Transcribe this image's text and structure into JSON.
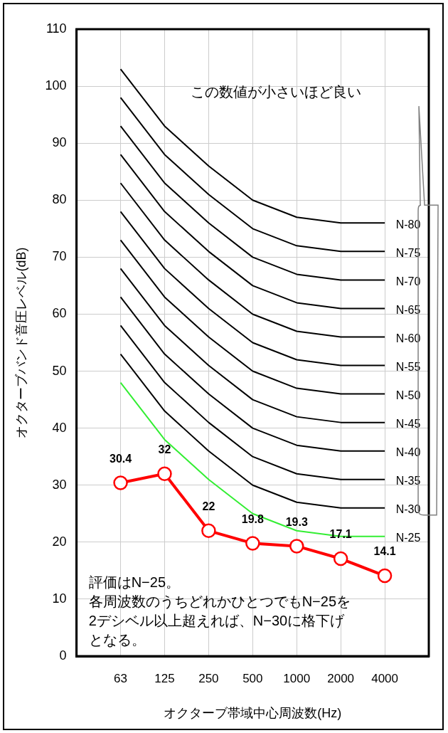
{
  "chart_data": {
    "type": "line",
    "xlabel": "オクターブ帯域中心周波数(Hz)",
    "ylabel": "オクターブバンド音圧レベル(dB)",
    "categories": [
      null,
      "63",
      "125",
      "250",
      "500",
      "1000",
      "2000",
      "4000",
      null
    ],
    "ylim": [
      0,
      110
    ],
    "yticks": [
      0,
      10,
      20,
      30,
      40,
      50,
      60,
      70,
      80,
      90,
      100,
      110
    ],
    "grid": true,
    "legend": false,
    "marker": "none",
    "series": [
      {
        "name": "N-80",
        "color": "#000000",
        "values": [
          null,
          103,
          93,
          86,
          80,
          77,
          76,
          76,
          null
        ]
      },
      {
        "name": "N-75",
        "color": "#000000",
        "values": [
          null,
          98,
          88,
          81,
          75,
          72,
          71,
          71,
          null
        ]
      },
      {
        "name": "N-70",
        "color": "#000000",
        "values": [
          null,
          93,
          83,
          76,
          70,
          67,
          66,
          66,
          null
        ]
      },
      {
        "name": "N-65",
        "color": "#000000",
        "values": [
          null,
          88,
          78,
          71,
          65,
          62,
          61,
          61,
          null
        ]
      },
      {
        "name": "N-60",
        "color": "#000000",
        "values": [
          null,
          83,
          73,
          66,
          60,
          57,
          56,
          56,
          null
        ]
      },
      {
        "name": "N-55",
        "color": "#000000",
        "values": [
          null,
          78,
          68,
          61,
          55,
          52,
          51,
          51,
          null
        ]
      },
      {
        "name": "N-50",
        "color": "#000000",
        "values": [
          null,
          73,
          63,
          56,
          50,
          47,
          46,
          46,
          null
        ]
      },
      {
        "name": "N-45",
        "color": "#000000",
        "values": [
          null,
          68,
          58,
          51,
          45,
          42,
          41,
          41,
          null
        ]
      },
      {
        "name": "N-40",
        "color": "#000000",
        "values": [
          null,
          63,
          53,
          46,
          40,
          37,
          36,
          36,
          null
        ]
      },
      {
        "name": "N-35",
        "color": "#000000",
        "values": [
          null,
          58,
          48,
          41,
          35,
          32,
          31,
          31,
          null
        ]
      },
      {
        "name": "N-30",
        "color": "#000000",
        "values": [
          null,
          53,
          43,
          36,
          30,
          27,
          26,
          26,
          null
        ]
      },
      {
        "name": "N-25",
        "color": "#33ee33",
        "values": [
          null,
          48,
          38,
          31,
          25,
          22,
          21,
          21,
          null
        ]
      },
      {
        "color": "#ff0000",
        "values": [
          null,
          30.4,
          32,
          22,
          19.8,
          19.3,
          17.1,
          14.1,
          null
        ],
        "marker": "circle",
        "data_labels": true
      }
    ],
    "annotations": [
      "この数値が小さいほど良い",
      "評価はN−25。",
      "各周波数のうちどれかひとつでもN−25を2デシベル以上超えれば、N−30に格下げとなる。"
    ]
  }
}
